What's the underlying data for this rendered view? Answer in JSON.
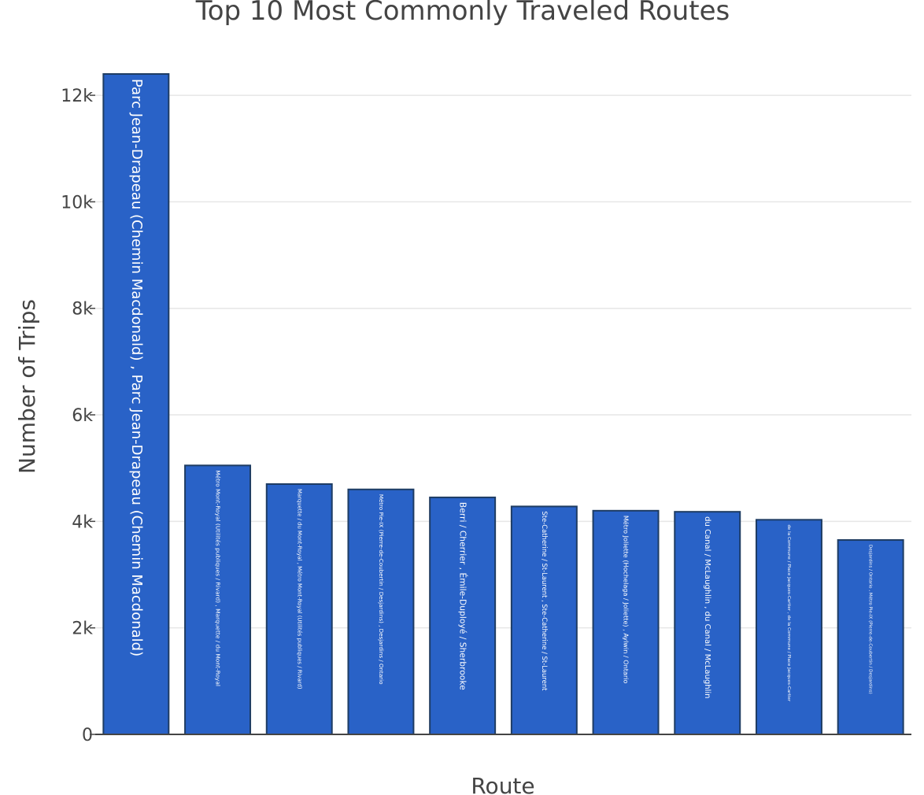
{
  "chart_data": {
    "type": "bar",
    "title": "Top 10 Most Commonly Traveled Routes",
    "xlabel": "Route",
    "ylabel": "Number of Trips",
    "ylim": [
      0,
      12400
    ],
    "yticks": [
      0,
      2000,
      4000,
      6000,
      8000,
      10000,
      12000
    ],
    "ytick_labels": [
      "0",
      "2k",
      "4k",
      "6k",
      "8k",
      "10k",
      "12k"
    ],
    "grid": true,
    "colors": {
      "bar_fill": "#2962c7",
      "bar_outline": "#1e3c63",
      "bar_text": "#ffffff"
    },
    "categories": [
      "Parc Jean-Drapeau (Chemin Macdonald) , Parc Jean-Drapeau (Chemin Macdonald)",
      "Métro Mont-Royal (Utilités publiques / Rivard) , Marquette / du Mont-Royal",
      "Marquette / du Mont-Royal , Métro Mont-Royal (Utilités publiques / Rivard)",
      "Métro Pie-IX (Pierre-de-Coubertin / Desjardins) , Desjardins / Ontario",
      "Berri / Cherrier , Émile-Duployé / Sherbrooke",
      "Ste-Catherine / St-Laurent , Ste-Catherine / St-Laurent",
      "Métro Joliette (Hochelaga / Joliette) , Aylwin / Ontario",
      "du Canal / McLaughlin , du Canal / McLaughlin",
      "de la Commune / Place Jacques-Cartier , de la Commune / Place Jacques-Cartier",
      "Desjardins / Ontario , Métro Pie-IX (Pierre-de-Coubertin / Desjardins)"
    ],
    "values": [
      12400,
      5050,
      4700,
      4600,
      4450,
      4280,
      4200,
      4180,
      4030,
      3650
    ]
  }
}
